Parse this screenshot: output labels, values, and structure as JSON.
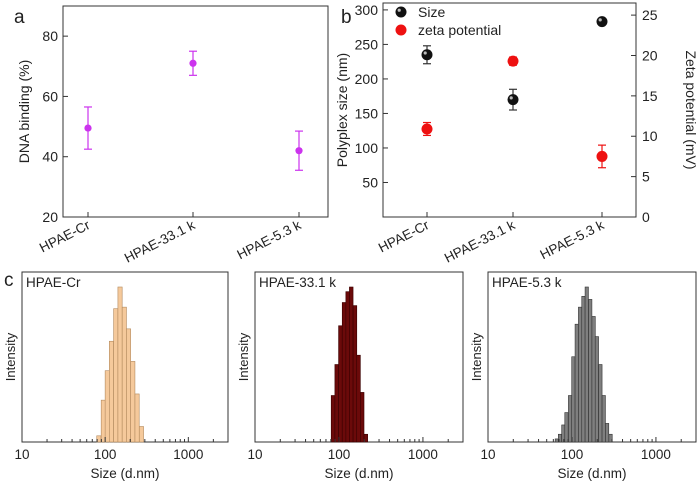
{
  "panels": {
    "a": "a",
    "b": "b",
    "c": "c"
  },
  "colors": {
    "magenta": "#cc33ee",
    "black": "#111111",
    "red": "#ee1111",
    "tan": "#f5c99b",
    "tan_edge": "#b38a5e",
    "maroon": "#6b0a0a",
    "maroon_edge": "#3a0000",
    "gray": "#7f7f7f",
    "gray_edge": "#333333"
  },
  "chart_data": [
    {
      "id": "a",
      "type": "scatter",
      "ylabel": "DNA binding (%)",
      "categories": [
        "HPAE-Cr",
        "HPAE-33.1 k",
        "HPAE-5.3 k"
      ],
      "ylim": [
        20,
        90
      ],
      "yticks": [
        20,
        40,
        60,
        80
      ],
      "series": [
        {
          "values": [
            49.5,
            71,
            42
          ],
          "errors": [
            7,
            4,
            6.5
          ]
        }
      ]
    },
    {
      "id": "b",
      "type": "scatter",
      "ylabel": "Polyplex size (nm)",
      "y2label": "Zeta potential (mV)",
      "categories": [
        "HPAE-Cr",
        "HPAE-33.1 k",
        "HPAE-5.3 k"
      ],
      "ylim": [
        0,
        310
      ],
      "yticks": [
        50,
        100,
        150,
        200,
        250,
        300
      ],
      "y2lim": [
        0,
        26.5
      ],
      "y2ticks": [
        0,
        5,
        10,
        15,
        20,
        25
      ],
      "legend_position": "top-left",
      "series": [
        {
          "name": "Size",
          "axis": "left",
          "values": [
            235,
            170,
            283
          ],
          "errors": [
            13,
            15,
            4
          ]
        },
        {
          "name": "zeta potential",
          "axis": "right",
          "values": [
            10.9,
            19.3,
            7.5
          ],
          "errors": [
            0.8,
            0.5,
            1.4
          ]
        }
      ]
    },
    {
      "id": "c1",
      "type": "bar",
      "title": "HPAE-Cr",
      "xlabel": "Size (d.nm)",
      "ylabel": "Intensity",
      "xscale": "log",
      "xlim": [
        10,
        3000
      ],
      "xticks": [
        10,
        100,
        1000
      ],
      "ylim": [
        0,
        1
      ],
      "bins_x": [
        84,
        95,
        106,
        119,
        134,
        151,
        170,
        191,
        215,
        242,
        273
      ],
      "values": [
        0.04,
        0.27,
        0.46,
        0.65,
        0.86,
        1.0,
        0.87,
        0.73,
        0.52,
        0.31,
        0.1
      ]
    },
    {
      "id": "c2",
      "type": "bar",
      "title": "HPAE-33.1 k",
      "xlabel": "Size (d.nm)",
      "ylabel": "Intensity",
      "xscale": "log",
      "xlim": [
        10,
        3000
      ],
      "xticks": [
        10,
        100,
        1000
      ],
      "ylim": [
        0,
        1
      ],
      "bins_x": [
        85,
        94,
        104,
        115,
        127,
        140,
        155,
        171,
        189,
        209
      ],
      "values": [
        0.3,
        0.5,
        0.75,
        0.9,
        0.97,
        1.0,
        0.88,
        0.56,
        0.32,
        0.05
      ]
    },
    {
      "id": "c3",
      "type": "bar",
      "title": "HPAE-5.3 k",
      "xlabel": "Size (d.nm)",
      "ylabel": "Intensity",
      "xscale": "log",
      "xlim": [
        10,
        3000
      ],
      "xticks": [
        10,
        100,
        1000
      ],
      "ylim": [
        0,
        1
      ],
      "bins_x": [
        66,
        72,
        79,
        86,
        95,
        104,
        114,
        125,
        137,
        150,
        165,
        181,
        198,
        218,
        239,
        262,
        288
      ],
      "values": [
        0.02,
        0.05,
        0.11,
        0.19,
        0.3,
        0.55,
        0.76,
        0.87,
        0.94,
        1.0,
        0.92,
        0.81,
        0.68,
        0.5,
        0.3,
        0.12,
        0.05
      ]
    }
  ]
}
